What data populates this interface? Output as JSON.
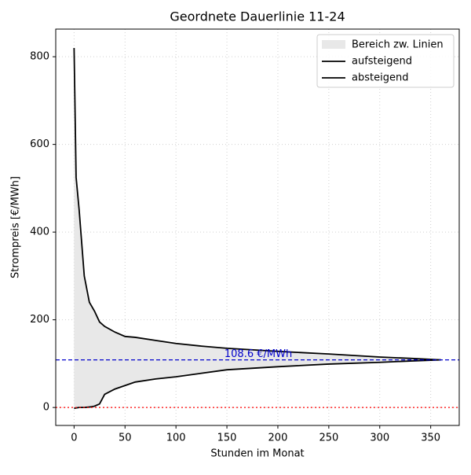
{
  "chart_data": {
    "type": "line",
    "title": "Geordnete Dauerlinie 11-24",
    "xlabel": "Stunden im Monat",
    "ylabel": "Strompreis [€/MWh]",
    "x": [
      0,
      2,
      5,
      10,
      15,
      20,
      25,
      30,
      40,
      50,
      60,
      80,
      100,
      125,
      150,
      200,
      250,
      300,
      330,
      360
    ],
    "series": [
      {
        "name": "aufsteigend",
        "color": "#000000",
        "values": [
          -2,
          -1,
          0,
          0,
          1,
          3,
          8,
          30,
          42,
          50,
          58,
          65,
          70,
          78,
          86,
          93,
          99,
          103,
          106,
          108.6
        ]
      },
      {
        "name": "absteigend",
        "color": "#000000",
        "values": [
          820,
          525,
          450,
          300,
          240,
          220,
          195,
          185,
          172,
          162,
          160,
          153,
          146,
          140,
          135,
          128,
          122,
          115,
          112,
          108.6
        ]
      }
    ],
    "fill_between": {
      "name": "Bereich zw. Linien",
      "color": "#e8e8e8"
    },
    "hlines": [
      {
        "value": 108.6,
        "label": "108.6 €/MWh",
        "color": "#0000cc",
        "style": "dashed"
      },
      {
        "value": 0,
        "color": "#ff0000",
        "style": "dotted"
      }
    ],
    "xlim": [
      -18,
      378
    ],
    "ylim": [
      -41,
      863
    ],
    "xticks": [
      0,
      50,
      100,
      150,
      200,
      250,
      300,
      350
    ],
    "yticks": [
      0,
      200,
      400,
      600,
      800
    ],
    "grid": true,
    "legend": "upper right"
  }
}
